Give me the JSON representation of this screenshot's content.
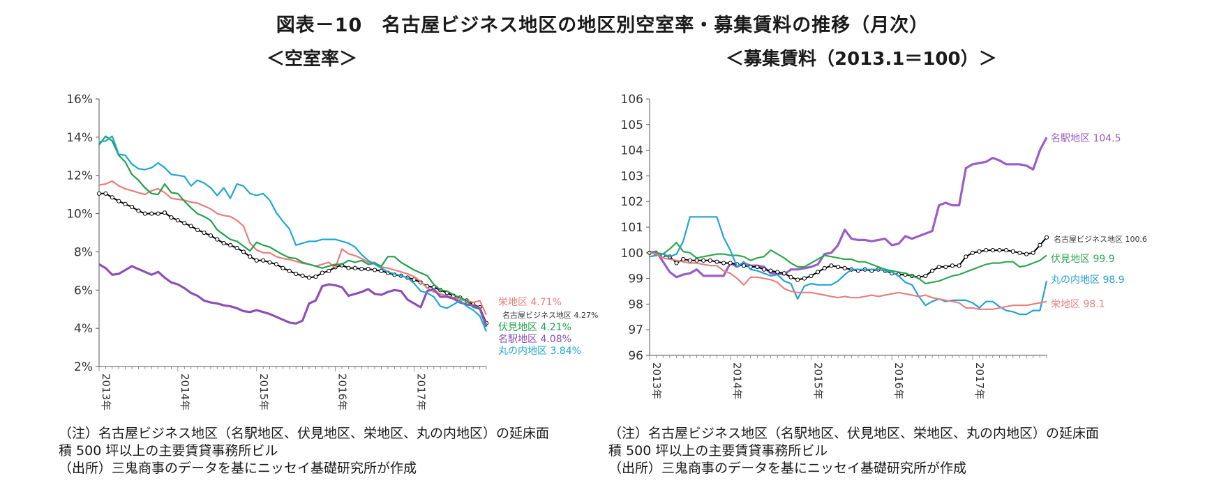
{
  "title": "図表－10　名古屋ビジネス地区の地区別空室率・募集賃料の推移（月次）",
  "notes": {
    "line1": "（注）名古屋ビジネス地区（名駅地区、伏見地区、栄地区、丸の内地区）の延床面",
    "line2": "積 500 坪以上の主要賃貸事務所ビル",
    "line3": "（出所）三鬼商事のデータを基にニッセイ基礎研究所が作成"
  },
  "chart_data": [
    {
      "type": "line",
      "title": "＜空室率＞",
      "x_ticks": [
        "2013年",
        "2014年",
        "2015年",
        "2016年",
        "2017年"
      ],
      "x_start": "2013-01",
      "x_end": "2017-12",
      "ylim": [
        0.02,
        0.16
      ],
      "y_ticks": [
        "2%",
        "4%",
        "6%",
        "8%",
        "10%",
        "12%",
        "14%",
        "16%"
      ],
      "grid": false,
      "series": [
        {
          "name": "名古屋ビジネス地区",
          "label": "名古屋ビジネス地区 4.27%",
          "color": "#000000",
          "markers": true,
          "values": [
            0.1105,
            0.1105,
            0.1085,
            0.1065,
            0.105,
            0.1035,
            0.1015,
            0.1,
            0.1,
            0.1,
            0.1005,
            0.098,
            0.0965,
            0.095,
            0.0935,
            0.0915,
            0.09,
            0.0885,
            0.0865,
            0.0845,
            0.0835,
            0.082,
            0.08,
            0.0775,
            0.0755,
            0.0755,
            0.0745,
            0.0735,
            0.0715,
            0.07,
            0.0685,
            0.0675,
            0.0665,
            0.067,
            0.069,
            0.07,
            0.072,
            0.073,
            0.0715,
            0.0715,
            0.071,
            0.071,
            0.0705,
            0.07,
            0.069,
            0.068,
            0.0675,
            0.0665,
            0.0655,
            0.064,
            0.062,
            0.0615,
            0.06,
            0.0585,
            0.057,
            0.056,
            0.0545,
            0.0525,
            0.051,
            0.0427
          ]
        },
        {
          "name": "栄地区",
          "label": "栄地区 4.71%",
          "color": "#E87D7A",
          "values": [
            0.115,
            0.1155,
            0.117,
            0.1145,
            0.113,
            0.112,
            0.111,
            0.11,
            0.112,
            0.113,
            0.111,
            0.108,
            0.1075,
            0.107,
            0.106,
            0.1055,
            0.104,
            0.1025,
            0.1,
            0.099,
            0.0985,
            0.0965,
            0.0935,
            0.0845,
            0.081,
            0.0795,
            0.0795,
            0.0775,
            0.0765,
            0.076,
            0.075,
            0.074,
            0.0735,
            0.0725,
            0.0735,
            0.0745,
            0.0715,
            0.0815,
            0.079,
            0.078,
            0.0765,
            0.0745,
            0.0745,
            0.072,
            0.0715,
            0.0705,
            0.0695,
            0.0685,
            0.067,
            0.0645,
            0.061,
            0.059,
            0.058,
            0.057,
            0.056,
            0.055,
            0.0545,
            0.0535,
            0.0545,
            0.0471
          ]
        },
        {
          "name": "伏見地区",
          "label": "伏見地区 4.21%",
          "color": "#22A14A",
          "values": [
            0.136,
            0.1405,
            0.138,
            0.1305,
            0.127,
            0.1205,
            0.1175,
            0.1135,
            0.1105,
            0.11,
            0.1155,
            0.111,
            0.1105,
            0.1065,
            0.103,
            0.1,
            0.0985,
            0.0965,
            0.0915,
            0.089,
            0.0865,
            0.0855,
            0.083,
            0.0805,
            0.085,
            0.0835,
            0.0825,
            0.0805,
            0.0785,
            0.077,
            0.0765,
            0.0745,
            0.0735,
            0.0725,
            0.0715,
            0.0725,
            0.0735,
            0.0735,
            0.0755,
            0.0745,
            0.0755,
            0.0735,
            0.074,
            0.0725,
            0.0775,
            0.0775,
            0.0745,
            0.0725,
            0.0705,
            0.069,
            0.0675,
            0.063,
            0.06,
            0.0595,
            0.0575,
            0.056,
            0.0545,
            0.051,
            0.05,
            0.0421
          ]
        },
        {
          "name": "名駅地区",
          "label": "名駅地区 4.08%",
          "color": "#8E4FB8",
          "values": [
            0.0735,
            0.0715,
            0.068,
            0.0685,
            0.0705,
            0.0725,
            0.071,
            0.0695,
            0.068,
            0.0695,
            0.0665,
            0.064,
            0.063,
            0.061,
            0.0585,
            0.057,
            0.0545,
            0.0535,
            0.053,
            0.052,
            0.0515,
            0.0505,
            0.049,
            0.0485,
            0.0495,
            0.0485,
            0.0475,
            0.046,
            0.0445,
            0.043,
            0.0425,
            0.044,
            0.053,
            0.0545,
            0.062,
            0.063,
            0.0625,
            0.0615,
            0.057,
            0.058,
            0.059,
            0.0605,
            0.058,
            0.0575,
            0.059,
            0.06,
            0.0595,
            0.055,
            0.053,
            0.051,
            0.0595,
            0.0605,
            0.0565,
            0.0565,
            0.0555,
            0.0535,
            0.0525,
            0.052,
            0.0505,
            0.0408
          ]
        },
        {
          "name": "丸の内地区",
          "label": "丸の内地区 3.84%",
          "color": "#1CA7D6",
          "values": [
            0.1375,
            0.138,
            0.1405,
            0.131,
            0.1305,
            0.126,
            0.1235,
            0.123,
            0.124,
            0.1265,
            0.124,
            0.1205,
            0.12,
            0.1195,
            0.1145,
            0.1175,
            0.116,
            0.1135,
            0.1095,
            0.1135,
            0.108,
            0.1155,
            0.1145,
            0.1105,
            0.1095,
            0.1105,
            0.107,
            0.1005,
            0.096,
            0.092,
            0.0835,
            0.0845,
            0.0855,
            0.0855,
            0.0865,
            0.0865,
            0.0865,
            0.0855,
            0.0845,
            0.0825,
            0.0785,
            0.0755,
            0.0735,
            0.0715,
            0.0695,
            0.0685,
            0.0675,
            0.0665,
            0.0635,
            0.0595,
            0.0585,
            0.0565,
            0.0515,
            0.0505,
            0.0525,
            0.0545,
            0.0515,
            0.0495,
            0.0465,
            0.0384
          ]
        }
      ]
    },
    {
      "type": "line",
      "title": "＜募集賃料（2013.1＝100）＞",
      "x_ticks": [
        "2013年",
        "2014年",
        "2015年",
        "2016年",
        "2017年"
      ],
      "x_start": "2013-01",
      "x_end": "2017-12",
      "ylim": [
        96,
        106
      ],
      "y_ticks": [
        "96",
        "97",
        "98",
        "99",
        "100",
        "101",
        "102",
        "103",
        "104",
        "105",
        "106"
      ],
      "grid": false,
      "series": [
        {
          "name": "名駅地区",
          "label": "名駅地区 104.5",
          "color": "#9B5BC8",
          "values": [
            100,
            100.05,
            99.65,
            99.25,
            99.05,
            99.15,
            99.2,
            99.35,
            99.1,
            99.1,
            99.1,
            99.1,
            99.6,
            99.45,
            99.6,
            99.5,
            99.5,
            99.45,
            99.2,
            99.2,
            99.15,
            99.35,
            99.35,
            99.4,
            99.45,
            99.55,
            99.95,
            100,
            100.3,
            100.9,
            100.55,
            100.5,
            100.5,
            100.45,
            100.5,
            100.55,
            100.3,
            100.35,
            100.65,
            100.55,
            100.65,
            100.75,
            100.85,
            101.85,
            101.95,
            101.85,
            101.85,
            103.3,
            103.45,
            103.5,
            103.55,
            103.7,
            103.6,
            103.45,
            103.45,
            103.45,
            103.4,
            103.25,
            104,
            104.5
          ]
        },
        {
          "name": "名古屋ビジネス地区",
          "label": "名古屋ビジネス地区 100.6",
          "color": "#000000",
          "markers": true,
          "values": [
            100,
            99.95,
            99.9,
            99.85,
            99.6,
            99.75,
            99.7,
            99.7,
            99.7,
            99.7,
            99.65,
            99.6,
            99.6,
            99.55,
            99.5,
            99.45,
            99.45,
            99.35,
            99.3,
            99.25,
            99.2,
            99.05,
            98.95,
            99,
            99.1,
            99.25,
            99.4,
            99.5,
            99.45,
            99.4,
            99.35,
            99.3,
            99.35,
            99.3,
            99.35,
            99.3,
            99.2,
            99.15,
            99.15,
            99.1,
            99.05,
            99.1,
            99.3,
            99.45,
            99.45,
            99.5,
            99.5,
            99.85,
            100,
            100.05,
            100.1,
            100.1,
            100.1,
            100.1,
            100.05,
            100,
            99.95,
            100,
            100.3,
            100.6
          ]
        },
        {
          "name": "伏見地区",
          "label": "伏見地区 99.9",
          "color": "#2EA84E",
          "values": [
            100,
            100,
            99.95,
            100.15,
            100.4,
            100.05,
            100,
            99.8,
            99.85,
            99.9,
            99.95,
            99.95,
            99.9,
            99.9,
            99.85,
            99.7,
            99.8,
            99.85,
            100.1,
            99.95,
            99.8,
            99.6,
            99.45,
            99.45,
            99.6,
            99.75,
            99.9,
            99.85,
            99.8,
            99.75,
            99.75,
            99.65,
            99.65,
            99.55,
            99.45,
            99.35,
            99.3,
            99.25,
            99.2,
            99.1,
            99,
            98.8,
            98.85,
            98.9,
            99,
            99.1,
            99.15,
            99.25,
            99.35,
            99.45,
            99.55,
            99.6,
            99.6,
            99.65,
            99.65,
            99.45,
            99.5,
            99.6,
            99.7,
            99.9
          ]
        },
        {
          "name": "丸の内地区",
          "label": "丸の内地区 98.9",
          "color": "#22A2D4",
          "values": [
            99.85,
            99.9,
            99.95,
            99.85,
            99.95,
            100.45,
            101.4,
            101.4,
            101.4,
            101.4,
            101.4,
            100.6,
            100.1,
            99.45,
            99.65,
            99.35,
            99.3,
            99.2,
            99.1,
            99.15,
            98.9,
            98.8,
            98.2,
            98.7,
            98.8,
            98.75,
            98.75,
            98.75,
            98.9,
            99.15,
            99.35,
            99.35,
            99.35,
            99.35,
            99.35,
            99.3,
            99.25,
            99.1,
            98.85,
            98.75,
            98.3,
            97.95,
            98.1,
            98.2,
            98.1,
            98.15,
            98.15,
            98.15,
            98.05,
            97.85,
            98.1,
            98.1,
            97.9,
            97.75,
            97.7,
            97.6,
            97.6,
            97.75,
            97.75,
            98.9
          ]
        },
        {
          "name": "栄地区",
          "label": "栄地区 98.1",
          "color": "#E8807D",
          "values": [
            100,
            99.95,
            99.8,
            99.75,
            99.7,
            99.65,
            99.6,
            99.6,
            99.55,
            99.5,
            99.5,
            99.3,
            99.2,
            99,
            98.75,
            99.05,
            99.05,
            99,
            98.95,
            98.85,
            98.6,
            98.5,
            98.45,
            98.45,
            98.45,
            98.4,
            98.35,
            98.3,
            98.25,
            98.3,
            98.25,
            98.25,
            98.3,
            98.35,
            98.3,
            98.35,
            98.4,
            98.45,
            98.4,
            98.35,
            98.3,
            98.35,
            98.25,
            98.2,
            98.15,
            98.1,
            98.05,
            97.85,
            97.85,
            97.8,
            97.8,
            97.8,
            97.85,
            97.9,
            97.95,
            97.95,
            97.95,
            98,
            98.05,
            98.1
          ]
        }
      ]
    }
  ]
}
